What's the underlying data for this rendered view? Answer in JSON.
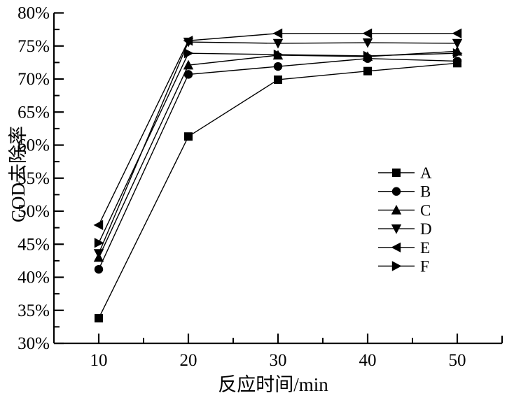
{
  "figure": {
    "background_color": "#ffffff",
    "ink_color": "#000000"
  },
  "chart_data": {
    "type": "line",
    "title": "",
    "xlabel": "反应时间/min",
    "ylabel": "COD去除率",
    "xlim": [
      5,
      55
    ],
    "ylim": [
      30,
      80
    ],
    "grid": false,
    "legend_position": "inside-right",
    "x": [
      10,
      20,
      30,
      40,
      50
    ],
    "x_major_ticks": [
      10,
      20,
      30,
      40,
      50
    ],
    "x_major_tick_labels": [
      "10",
      "20",
      "30",
      "40",
      "50"
    ],
    "x_minor_ticks": [
      15,
      25,
      35,
      45
    ],
    "x_end_tick": 55,
    "y_major_ticks": [
      30,
      35,
      40,
      45,
      50,
      55,
      60,
      65,
      70,
      75,
      80
    ],
    "y_major_tick_labels": [
      "30%",
      "35%",
      "40%",
      "45%",
      "50%",
      "55%",
      "60%",
      "65%",
      "70%",
      "75%",
      "80%"
    ],
    "y_minor_ticks": [
      32.5,
      37.5,
      42.5,
      47.5,
      52.5,
      57.5,
      62.5,
      67.5,
      72.5,
      77.5
    ],
    "series": [
      {
        "name": "A",
        "marker": "square",
        "color": "#000000",
        "values": [
          33.8,
          61.3,
          69.9,
          71.2,
          72.4
        ]
      },
      {
        "name": "B",
        "marker": "circle",
        "color": "#000000",
        "values": [
          41.2,
          70.7,
          71.9,
          73.1,
          72.7
        ]
      },
      {
        "name": "C",
        "marker": "triangle-up",
        "color": "#000000",
        "values": [
          43.0,
          72.1,
          73.6,
          73.4,
          74.2
        ]
      },
      {
        "name": "D",
        "marker": "triangle-down",
        "color": "#000000",
        "values": [
          43.6,
          75.6,
          75.4,
          75.5,
          75.4
        ]
      },
      {
        "name": "E",
        "marker": "triangle-left",
        "color": "#000000",
        "values": [
          47.9,
          75.8,
          76.9,
          76.9,
          76.9
        ]
      },
      {
        "name": "F",
        "marker": "triangle-right",
        "color": "#000000",
        "values": [
          45.2,
          73.9,
          73.7,
          73.5,
          73.9
        ]
      }
    ],
    "legend_labels": [
      "A",
      "B",
      "C",
      "D",
      "E",
      "F"
    ]
  }
}
